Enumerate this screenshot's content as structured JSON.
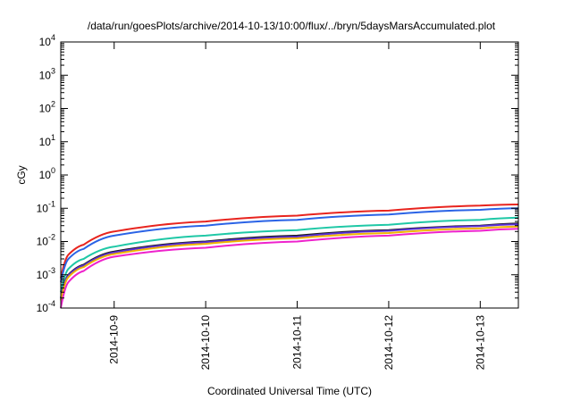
{
  "chart_data": {
    "type": "line",
    "title": "/data/run/goesPlots/archive/2014-10-13/10:00/flux/../bryn/5daysMarsAccumulated.plot",
    "xlabel": "Coordinated Universal Time (UTC)",
    "ylabel": "cGy",
    "y_scale": "log",
    "ylim": [
      0.0001,
      10000
    ],
    "y_ticks": [
      {
        "base": "10",
        "exp": "-4"
      },
      {
        "base": "10",
        "exp": "-3"
      },
      {
        "base": "10",
        "exp": "-2"
      },
      {
        "base": "10",
        "exp": "-1"
      },
      {
        "base": "10",
        "exp": "0"
      },
      {
        "base": "10",
        "exp": "1"
      },
      {
        "base": "10",
        "exp": "2"
      },
      {
        "base": "10",
        "exp": "3"
      },
      {
        "base": "10",
        "exp": "4"
      }
    ],
    "xlim": [
      "2014-10-08T10:00",
      "2014-10-13T10:00"
    ],
    "x_ticks": [
      "2014-10-9",
      "2014-10-10",
      "2014-10-11",
      "2014-10-12",
      "2014-10-13"
    ],
    "grid": false,
    "series": [
      {
        "color": "#e8241e",
        "x": [
          "2014-10-08T10:00",
          "2014-10-08T12:00",
          "2014-10-08T16:00",
          "2014-10-09T00:00",
          "2014-10-10T00:00",
          "2014-10-11T00:00",
          "2014-10-12T00:00",
          "2014-10-13T00:00",
          "2014-10-13T10:00"
        ],
        "values": [
          0.0008,
          0.004,
          0.008,
          0.02,
          0.04,
          0.06,
          0.085,
          0.12,
          0.13
        ]
      },
      {
        "color": "#2a63e6",
        "x": [
          "2014-10-08T10:00",
          "2014-10-08T12:00",
          "2014-10-08T16:00",
          "2014-10-09T00:00",
          "2014-10-10T00:00",
          "2014-10-11T00:00",
          "2014-10-12T00:00",
          "2014-10-13T00:00",
          "2014-10-13T10:00"
        ],
        "values": [
          0.0006,
          0.003,
          0.006,
          0.015,
          0.03,
          0.045,
          0.065,
          0.09,
          0.1
        ]
      },
      {
        "color": "#1fc8a6",
        "x": [
          "2014-10-08T10:00",
          "2014-10-08T12:00",
          "2014-10-08T16:00",
          "2014-10-09T00:00",
          "2014-10-10T00:00",
          "2014-10-11T00:00",
          "2014-10-12T00:00",
          "2014-10-13T00:00",
          "2014-10-13T10:00"
        ],
        "values": [
          0.0003,
          0.0015,
          0.003,
          0.007,
          0.015,
          0.022,
          0.032,
          0.045,
          0.052
        ]
      },
      {
        "color": "#1a1a1a",
        "x": [
          "2014-10-08T10:00",
          "2014-10-08T12:00",
          "2014-10-08T16:00",
          "2014-10-09T00:00",
          "2014-10-10T00:00",
          "2014-10-11T00:00",
          "2014-10-12T00:00",
          "2014-10-13T00:00",
          "2014-10-13T10:00"
        ],
        "values": [
          0.0002,
          0.001,
          0.002,
          0.005,
          0.01,
          0.015,
          0.022,
          0.03,
          0.035
        ]
      },
      {
        "color": "#5a2fd6",
        "x": [
          "2014-10-08T10:00",
          "2014-10-08T12:00",
          "2014-10-08T16:00",
          "2014-10-09T00:00",
          "2014-10-10T00:00",
          "2014-10-11T00:00",
          "2014-10-12T00:00",
          "2014-10-13T00:00",
          "2014-10-13T10:00"
        ],
        "values": [
          0.00019,
          0.00095,
          0.0019,
          0.0047,
          0.0095,
          0.014,
          0.021,
          0.029,
          0.033
        ]
      },
      {
        "color": "#f0b400",
        "x": [
          "2014-10-08T10:00",
          "2014-10-08T12:00",
          "2014-10-08T16:00",
          "2014-10-09T00:00",
          "2014-10-10T00:00",
          "2014-10-11T00:00",
          "2014-10-12T00:00",
          "2014-10-13T00:00",
          "2014-10-13T10:00"
        ],
        "values": [
          0.00017,
          0.00085,
          0.0017,
          0.0042,
          0.0085,
          0.0125,
          0.018,
          0.025,
          0.028
        ]
      },
      {
        "color": "#ee22cc",
        "x": [
          "2014-10-08T10:00",
          "2014-10-08T12:00",
          "2014-10-08T16:00",
          "2014-10-09T00:00",
          "2014-10-10T00:00",
          "2014-10-11T00:00",
          "2014-10-12T00:00",
          "2014-10-13T00:00",
          "2014-10-13T10:00"
        ],
        "values": [
          0.0001,
          0.0006,
          0.0013,
          0.0035,
          0.0065,
          0.01,
          0.015,
          0.021,
          0.024
        ]
      }
    ]
  }
}
